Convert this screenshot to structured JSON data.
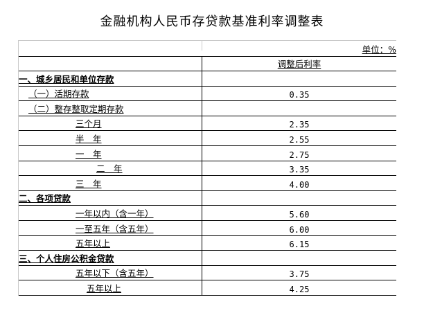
{
  "title": "金融机构人民币存贷款基准利率调整表",
  "unit": "单位：%",
  "column_header": "调整后利率",
  "rows": [
    {
      "label": "一、城乡居民和单位存款",
      "value": "",
      "type": "section"
    },
    {
      "label": "（一）活期存款",
      "value": "0.35",
      "type": "sub"
    },
    {
      "label": "（二）整存整取定期存款",
      "value": "",
      "type": "sub"
    },
    {
      "label": "三个月",
      "value": "2.35",
      "type": "item"
    },
    {
      "label": "半　年",
      "value": "2.55",
      "type": "item"
    },
    {
      "label": "一　年",
      "value": "2.75",
      "type": "item"
    },
    {
      "label": "二　年",
      "value": "3.35",
      "type": "item2"
    },
    {
      "label": "三　年",
      "value": "4.00",
      "type": "item"
    },
    {
      "label": "二、各项贷款",
      "value": "",
      "type": "section"
    },
    {
      "label": "一年以内（含一年）",
      "value": "5.60",
      "type": "item"
    },
    {
      "label": "一至五年（含五年）",
      "value": "6.00",
      "type": "item"
    },
    {
      "label": "五年以上",
      "value": "6.15",
      "type": "item"
    },
    {
      "label": "三、个人住房公积金贷款",
      "value": "",
      "type": "section"
    },
    {
      "label": "五年以下（含五年）",
      "value": "3.75",
      "type": "item"
    },
    {
      "label": "五年以上",
      "value": "4.25",
      "type": "item3"
    }
  ]
}
